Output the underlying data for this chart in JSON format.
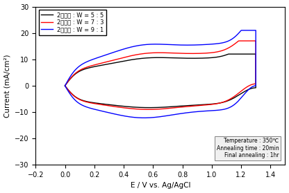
{
  "title": "",
  "xlabel": "E / V vs. Ag/AgCl",
  "ylabel": "Current (mA/cm²)",
  "xlim": [
    -0.2,
    1.5
  ],
  "ylim": [
    -30,
    30
  ],
  "xticks": [
    -0.2,
    0.0,
    0.2,
    0.4,
    0.6,
    0.8,
    1.0,
    1.2,
    1.4
  ],
  "yticks": [
    -30,
    -20,
    -10,
    0,
    10,
    20,
    30
  ],
  "legend_labels": [
    "2성분계 : W = 5 : 5",
    "2성분계 : W = 7 : 3",
    "2성분계 : W = 9 : 1"
  ],
  "colors": [
    "black",
    "red",
    "blue"
  ],
  "annotation": "Temperature : 350℃\nAnnealing time : 20min\nFinal annealing : 1hr",
  "annotation_box_color": "#f0f0f0"
}
